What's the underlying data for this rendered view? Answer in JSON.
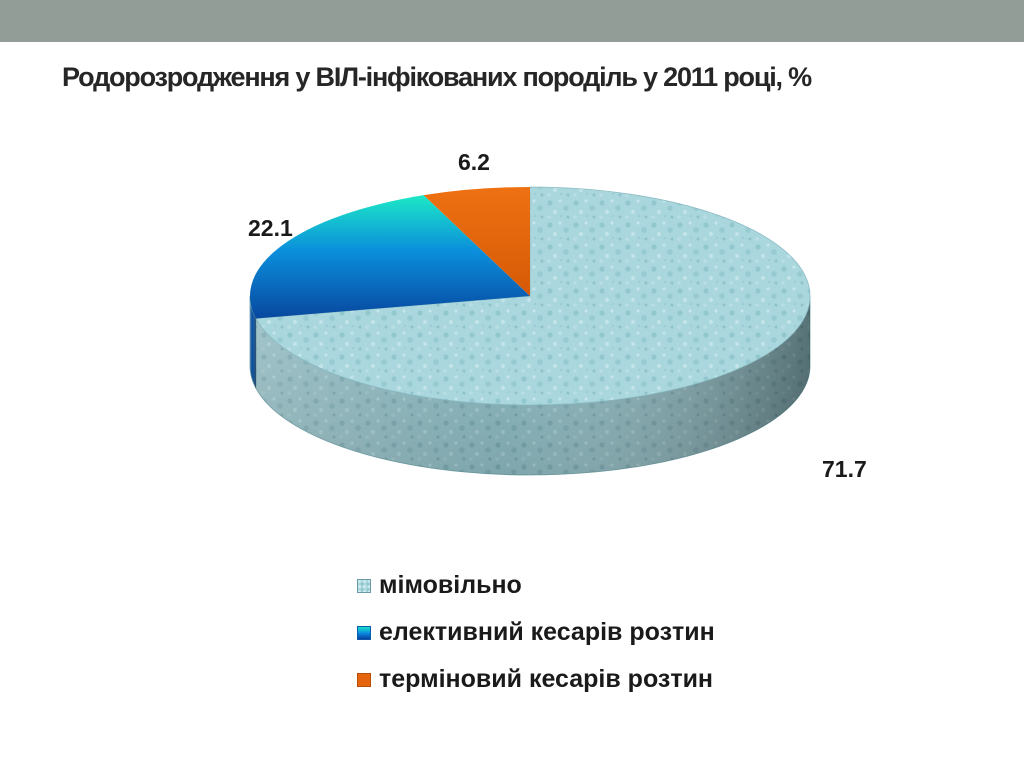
{
  "slide": {
    "title": "Родорозродження у ВІЛ-інфікованих породіль у 2011 році, %"
  },
  "chart_data": {
    "type": "pie",
    "title": "Родорозродження у ВІЛ-інфікованих породіль у 2011 році, %",
    "style": "3d",
    "legend_position": "bottom",
    "categories": [
      "мімовільно",
      "елективний кесарів розтин",
      "терміновий кесарів розтин"
    ],
    "values": [
      71.7,
      22.1,
      6.2
    ],
    "value_labels": [
      "71.7",
      "22.1",
      "6.2"
    ],
    "colors": [
      "#a9d7dd",
      "#0a86de",
      "#e4650d"
    ]
  },
  "legend": {
    "items": [
      {
        "label": "мімовільно",
        "color": "#a9d7dd"
      },
      {
        "label": "елективний кесарів розтин",
        "color": "#0a86de"
      },
      {
        "label": "терміновий кесарів розтин",
        "color": "#e4650d"
      }
    ]
  }
}
